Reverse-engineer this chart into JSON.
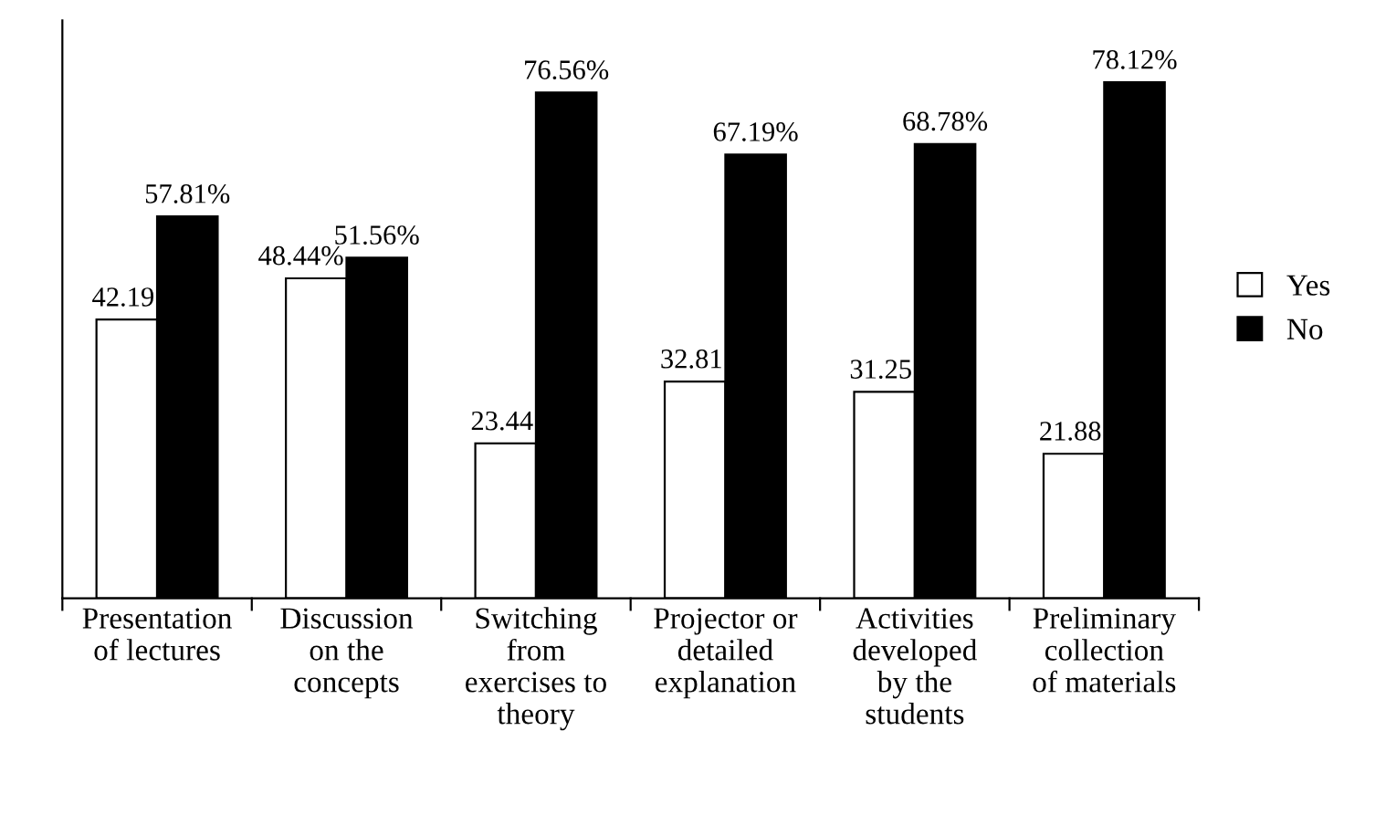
{
  "chart_data": {
    "type": "bar",
    "categories": [
      "Presentation\nof lectures",
      "Discussion\non the\nconcepts",
      "Switching\nfrom\nexercises to\ntheory",
      "Projector or\ndetailed\nexplanation",
      "Activities\ndeveloped\nby the\nstudents",
      "Preliminary\ncollection\nof materials"
    ],
    "series": [
      {
        "name": "Yes",
        "color": "#ffffff",
        "values": [
          42.19,
          48.44,
          23.44,
          32.81,
          31.25,
          21.88
        ],
        "value_labels": [
          "42.19",
          "48.44%",
          "23.44",
          "32.81",
          "31.25",
          "21.88"
        ]
      },
      {
        "name": "No",
        "color": "#000000",
        "values": [
          57.81,
          51.56,
          76.56,
          67.19,
          68.78,
          78.12
        ],
        "value_labels": [
          "57.81%",
          "51.56%",
          "76.56%",
          "67.19%",
          "68.78%",
          "78.12%"
        ]
      }
    ],
    "legend": "right",
    "grid": false
  }
}
